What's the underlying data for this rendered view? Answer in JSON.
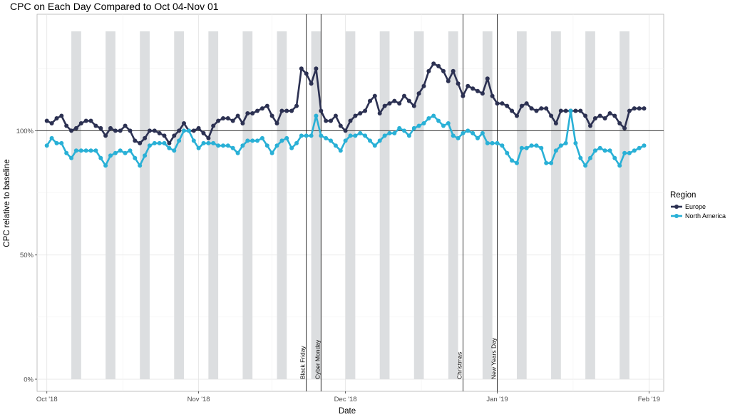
{
  "chart_data": {
    "type": "line",
    "title": "CPC on Each Day Compared to Oct 04-Nov 01",
    "xlabel": "Date",
    "ylabel": "CPC relative to baseline",
    "x_tick_labels": [
      "Oct '18",
      "Nov '18",
      "Dec '18",
      "Jan '19",
      "Feb '19"
    ],
    "y_tick_labels": [
      "0%",
      "50%",
      "100%"
    ],
    "ylim": [
      0,
      1.45
    ],
    "xlim": [
      "2018-09-29",
      "2019-02-04"
    ],
    "reference_line": 1.0,
    "grid": true,
    "legend": {
      "title": "Region",
      "placement": "right"
    },
    "weekend_bands_start": [
      "2018-10-06",
      "2018-10-13",
      "2018-10-20",
      "2018-10-27",
      "2018-11-03",
      "2018-11-10",
      "2018-11-17",
      "2018-11-24",
      "2018-12-01",
      "2018-12-08",
      "2018-12-15",
      "2018-12-22",
      "2018-12-29",
      "2019-01-05",
      "2019-01-12",
      "2019-01-19",
      "2019-01-26"
    ],
    "events": [
      {
        "label": "Black Friday",
        "date": "2018-11-23"
      },
      {
        "label": "Cyber Monday",
        "date": "2018-11-26"
      },
      {
        "label": "Christmas",
        "date": "2018-12-25"
      },
      {
        "label": "New Years Day",
        "date": "2019-01-01"
      }
    ],
    "x": [
      "2018-10-01",
      "2018-10-02",
      "2018-10-03",
      "2018-10-04",
      "2018-10-05",
      "2018-10-06",
      "2018-10-07",
      "2018-10-08",
      "2018-10-09",
      "2018-10-10",
      "2018-10-11",
      "2018-10-12",
      "2018-10-13",
      "2018-10-14",
      "2018-10-15",
      "2018-10-16",
      "2018-10-17",
      "2018-10-18",
      "2018-10-19",
      "2018-10-20",
      "2018-10-21",
      "2018-10-22",
      "2018-10-23",
      "2018-10-24",
      "2018-10-25",
      "2018-10-26",
      "2018-10-27",
      "2018-10-28",
      "2018-10-29",
      "2018-10-30",
      "2018-10-31",
      "2018-11-01",
      "2018-11-02",
      "2018-11-03",
      "2018-11-04",
      "2018-11-05",
      "2018-11-06",
      "2018-11-07",
      "2018-11-08",
      "2018-11-09",
      "2018-11-10",
      "2018-11-11",
      "2018-11-12",
      "2018-11-13",
      "2018-11-14",
      "2018-11-15",
      "2018-11-16",
      "2018-11-17",
      "2018-11-18",
      "2018-11-19",
      "2018-11-20",
      "2018-11-21",
      "2018-11-22",
      "2018-11-23",
      "2018-11-24",
      "2018-11-25",
      "2018-11-26",
      "2018-11-27",
      "2018-11-28",
      "2018-11-29",
      "2018-11-30",
      "2018-12-01",
      "2018-12-02",
      "2018-12-03",
      "2018-12-04",
      "2018-12-05",
      "2018-12-06",
      "2018-12-07",
      "2018-12-08",
      "2018-12-09",
      "2018-12-10",
      "2018-12-11",
      "2018-12-12",
      "2018-12-13",
      "2018-12-14",
      "2018-12-15",
      "2018-12-16",
      "2018-12-17",
      "2018-12-18",
      "2018-12-19",
      "2018-12-20",
      "2018-12-21",
      "2018-12-22",
      "2018-12-23",
      "2018-12-24",
      "2018-12-25",
      "2018-12-26",
      "2018-12-27",
      "2018-12-28",
      "2018-12-29",
      "2018-12-30",
      "2018-12-31",
      "2019-01-01",
      "2019-01-02",
      "2019-01-03",
      "2019-01-04",
      "2019-01-05",
      "2019-01-06",
      "2019-01-07",
      "2019-01-08",
      "2019-01-09",
      "2019-01-10",
      "2019-01-11",
      "2019-01-12",
      "2019-01-13",
      "2019-01-14",
      "2019-01-15",
      "2019-01-16",
      "2019-01-17",
      "2019-01-18",
      "2019-01-19",
      "2019-01-20",
      "2019-01-21",
      "2019-01-22",
      "2019-01-23",
      "2019-01-24",
      "2019-01-25",
      "2019-01-26",
      "2019-01-27",
      "2019-01-28",
      "2019-01-29",
      "2019-01-30",
      "2019-01-31"
    ],
    "series": [
      {
        "name": "Europe",
        "color": "#2c3152",
        "values": [
          1.04,
          1.03,
          1.05,
          1.06,
          1.02,
          1.0,
          1.01,
          1.03,
          1.04,
          1.04,
          1.02,
          1.01,
          0.98,
          1.01,
          1.0,
          1.0,
          1.02,
          1.0,
          0.96,
          0.95,
          0.97,
          1.0,
          1.0,
          0.99,
          0.98,
          0.95,
          0.98,
          1.0,
          1.03,
          1.0,
          1.0,
          1.01,
          0.99,
          0.97,
          1.02,
          1.04,
          1.05,
          1.05,
          1.04,
          1.06,
          1.03,
          1.07,
          1.07,
          1.08,
          1.09,
          1.1,
          1.06,
          1.03,
          1.08,
          1.08,
          1.08,
          1.1,
          1.25,
          1.23,
          1.19,
          1.25,
          1.08,
          1.04,
          1.04,
          1.06,
          1.02,
          1.0,
          1.04,
          1.06,
          1.07,
          1.08,
          1.12,
          1.14,
          1.07,
          1.1,
          1.11,
          1.12,
          1.11,
          1.14,
          1.12,
          1.1,
          1.15,
          1.18,
          1.24,
          1.27,
          1.26,
          1.24,
          1.2,
          1.24,
          1.19,
          1.14,
          1.18,
          1.17,
          1.16,
          1.15,
          1.21,
          1.14,
          1.11,
          1.11,
          1.1,
          1.08,
          1.06,
          1.1,
          1.11,
          1.09,
          1.08,
          1.09,
          1.09,
          1.06,
          1.03,
          1.08,
          1.08,
          1.08,
          1.08,
          1.08,
          1.06,
          1.02,
          1.05,
          1.06,
          1.05,
          1.07,
          1.06,
          1.03,
          1.01,
          1.08,
          1.09,
          1.09,
          1.09
        ]
      },
      {
        "name": "North America",
        "color": "#29b0d6",
        "values": [
          0.94,
          0.97,
          0.95,
          0.95,
          0.91,
          0.89,
          0.92,
          0.92,
          0.92,
          0.92,
          0.92,
          0.89,
          0.86,
          0.9,
          0.91,
          0.92,
          0.91,
          0.92,
          0.89,
          0.86,
          0.9,
          0.94,
          0.95,
          0.95,
          0.95,
          0.93,
          0.92,
          0.96,
          1.0,
          1.0,
          0.96,
          0.93,
          0.95,
          0.95,
          0.95,
          0.94,
          0.94,
          0.94,
          0.93,
          0.91,
          0.94,
          0.96,
          0.96,
          0.96,
          0.97,
          0.94,
          0.91,
          0.94,
          0.96,
          0.97,
          0.93,
          0.95,
          0.98,
          0.98,
          0.98,
          1.06,
          0.98,
          0.97,
          0.96,
          0.94,
          0.92,
          0.96,
          0.98,
          0.98,
          0.99,
          0.98,
          0.96,
          0.94,
          0.96,
          0.98,
          0.99,
          0.99,
          1.01,
          1.0,
          0.98,
          1.01,
          1.02,
          1.03,
          1.05,
          1.06,
          1.04,
          1.02,
          1.03,
          0.98,
          0.97,
          0.99,
          1.0,
          0.99,
          0.97,
          0.99,
          0.95,
          0.95,
          0.95,
          0.94,
          0.91,
          0.88,
          0.87,
          0.93,
          0.93,
          0.94,
          0.94,
          0.93,
          0.87,
          0.87,
          0.92,
          0.94,
          0.95,
          1.08,
          0.95,
          0.89,
          0.86,
          0.89,
          0.92,
          0.93,
          0.92,
          0.92,
          0.89,
          0.86,
          0.91,
          0.91,
          0.92,
          0.93,
          0.94
        ]
      }
    ]
  }
}
